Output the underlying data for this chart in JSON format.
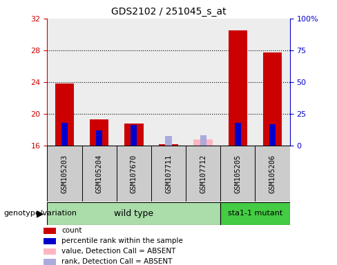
{
  "title": "GDS2102 / 251045_s_at",
  "samples": [
    "GSM105203",
    "GSM105204",
    "GSM107670",
    "GSM107711",
    "GSM107712",
    "GSM105205",
    "GSM105206"
  ],
  "ylim_left": [
    16,
    32
  ],
  "ylim_right": [
    0,
    100
  ],
  "yticks_left": [
    16,
    20,
    24,
    28,
    32
  ],
  "yticks_right": [
    0,
    25,
    50,
    75,
    100
  ],
  "ytick_labels_right": [
    "0",
    "25",
    "50",
    "75",
    "100%"
  ],
  "red_values": [
    23.8,
    19.3,
    18.8,
    16.15,
    16.0,
    30.5,
    27.7
  ],
  "blue_values": [
    18.85,
    17.9,
    18.65,
    16.0,
    16.0,
    18.85,
    18.75
  ],
  "pink_values": [
    16.0,
    16.0,
    16.0,
    16.0,
    16.8,
    16.0,
    16.0
  ],
  "lightblue_values": [
    16.0,
    16.0,
    16.0,
    17.2,
    17.35,
    16.0,
    16.0
  ],
  "base": 16,
  "red_color": "#CC0000",
  "blue_color": "#0000CC",
  "pink_color": "#FFB6C1",
  "lightblue_color": "#AAAADD",
  "red_bar_width": 0.55,
  "blue_bar_width": 0.18,
  "pink_bar_width": 0.55,
  "lb_bar_width": 0.18,
  "axis_color_left": "#CC0000",
  "axis_color_right": "#0000CC",
  "grid_dotted_at": [
    20,
    24,
    28
  ],
  "col_bg_color": "#CCCCCC",
  "wt_color": "#AADDAA",
  "mut_color": "#44CC44",
  "wt_label": "wild type",
  "mut_label": "sta1-1 mutant",
  "wt_indices": [
    0,
    1,
    2,
    3,
    4
  ],
  "mut_indices": [
    5,
    6
  ],
  "genotype_label": "genotype/variation",
  "legend_items": [
    {
      "label": "count",
      "color": "#CC0000"
    },
    {
      "label": "percentile rank within the sample",
      "color": "#0000CC"
    },
    {
      "label": "value, Detection Call = ABSENT",
      "color": "#FFB6C1"
    },
    {
      "label": "rank, Detection Call = ABSENT",
      "color": "#AAAADD"
    }
  ],
  "title_fontsize": 10,
  "tick_fontsize": 8,
  "label_fontsize": 8,
  "legend_fontsize": 7.5
}
